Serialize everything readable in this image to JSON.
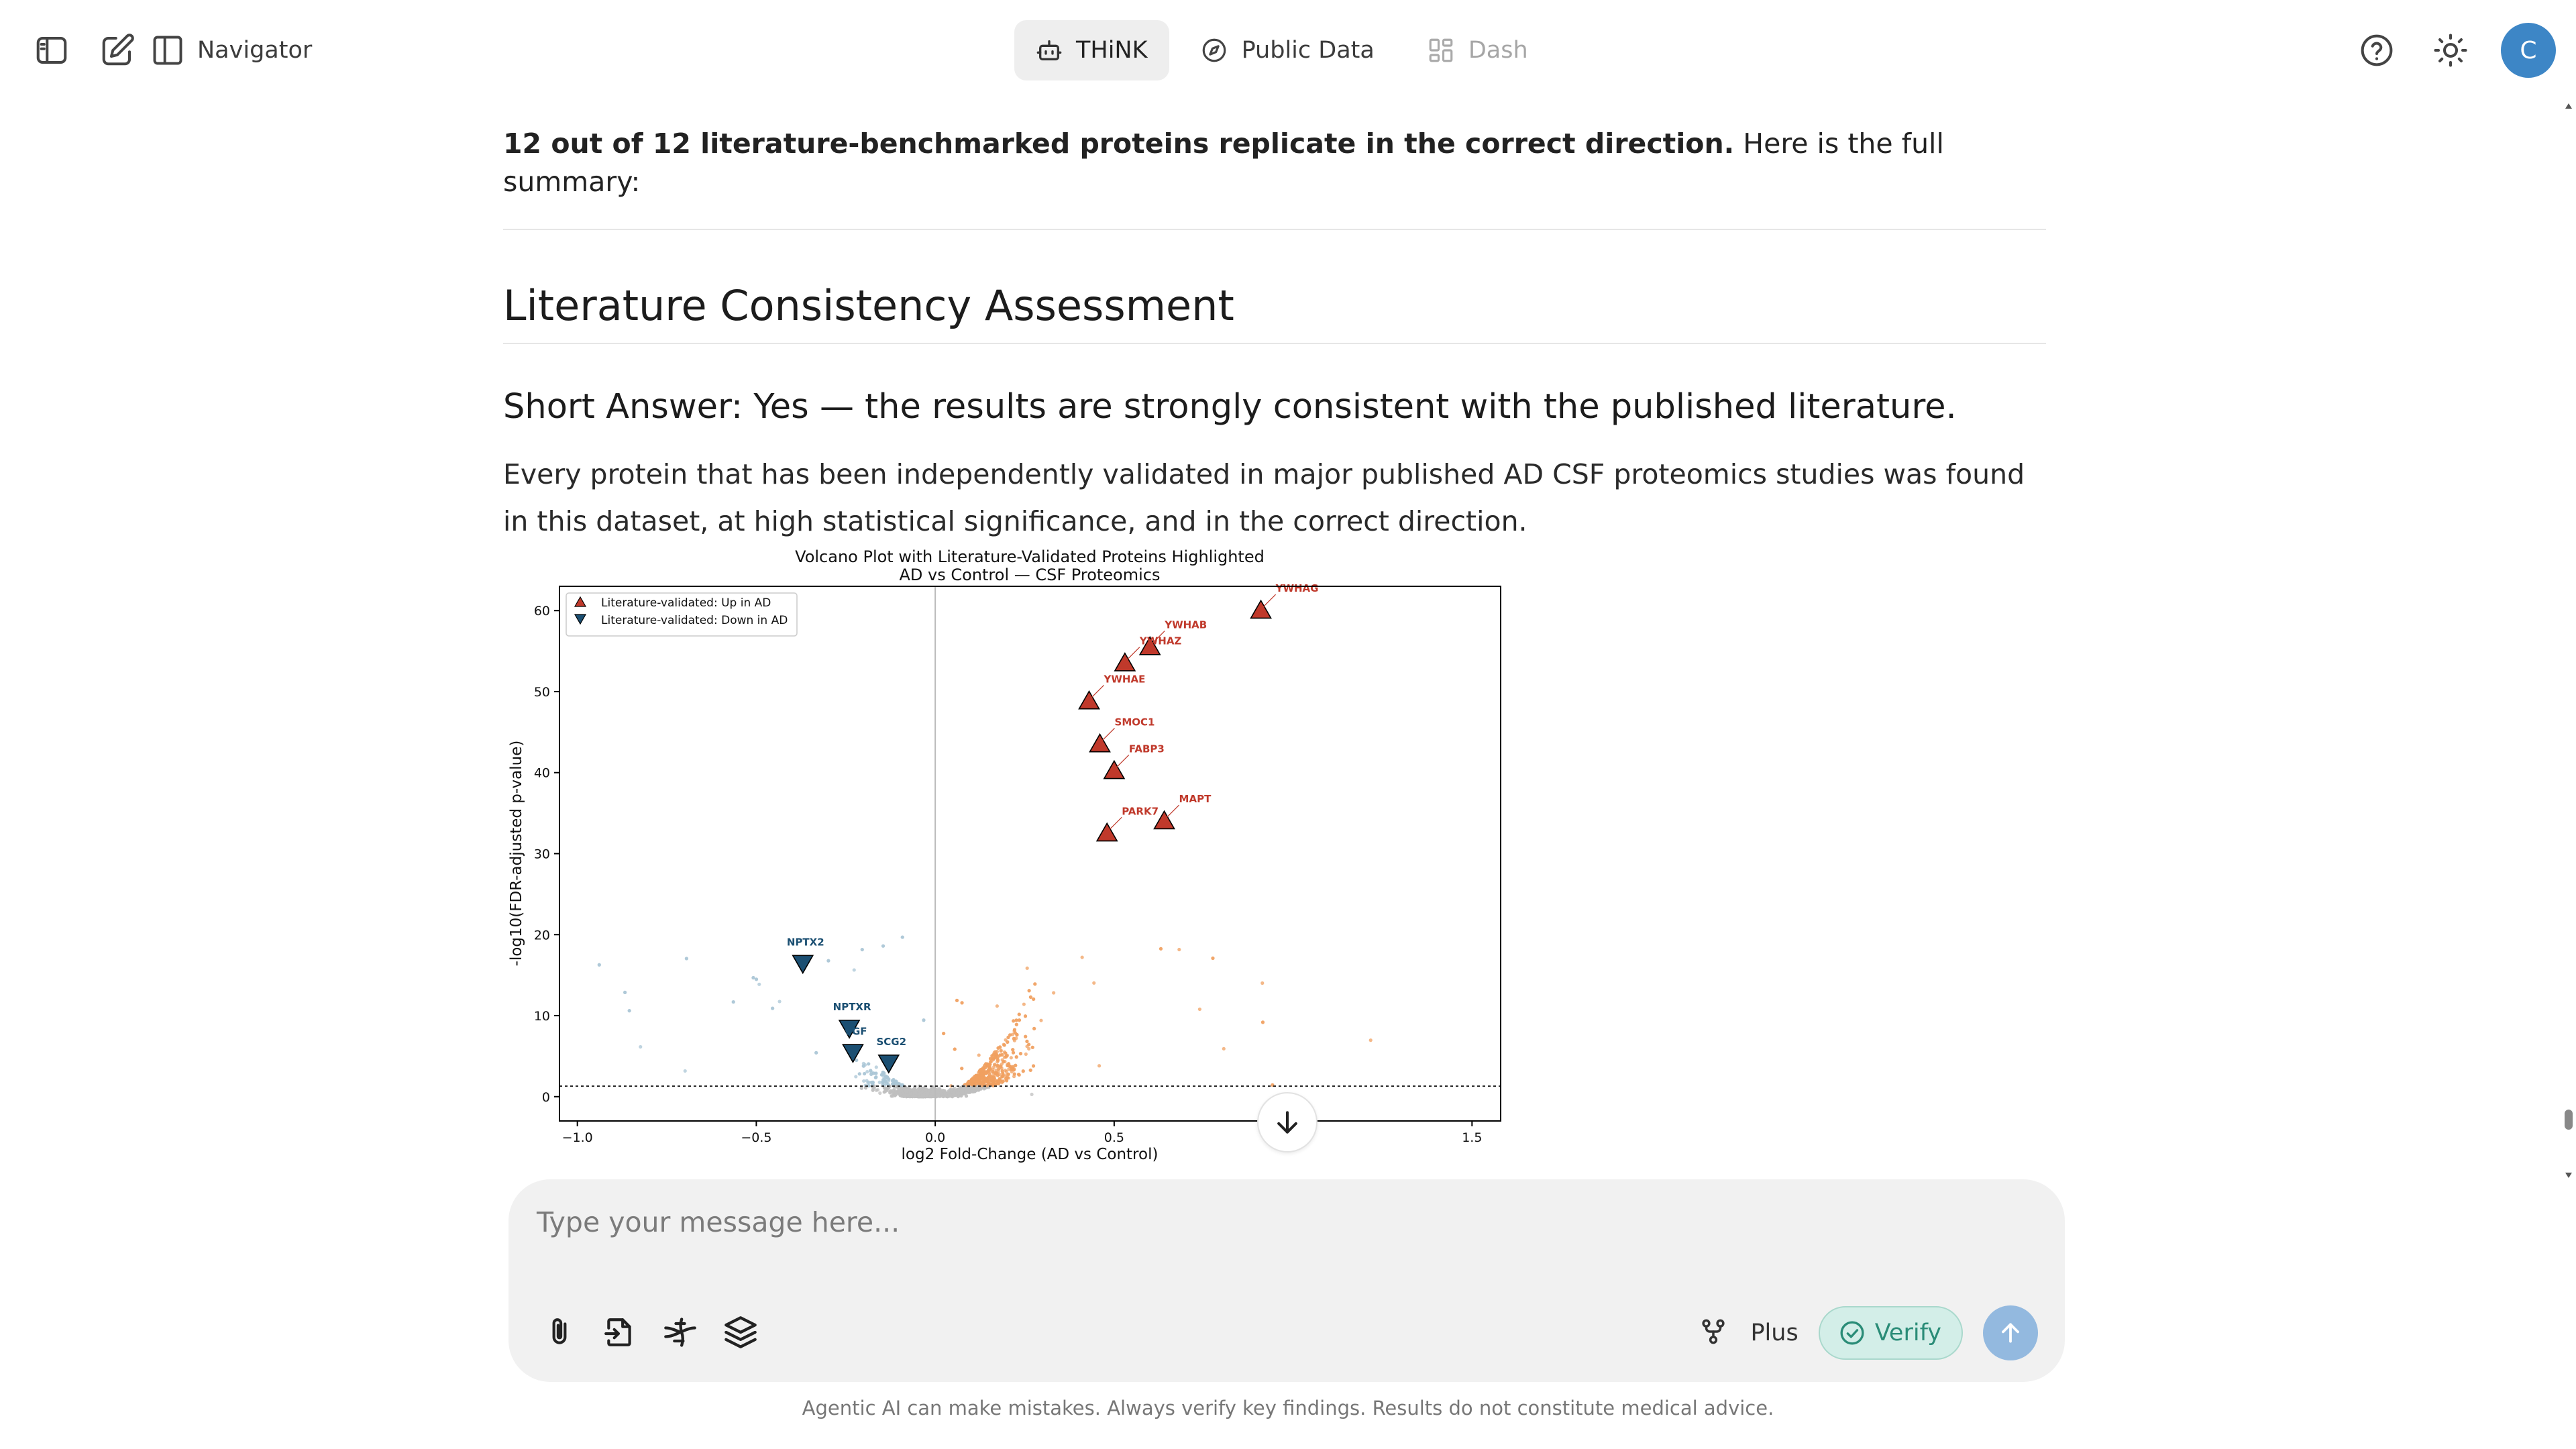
{
  "topbar": {
    "navigator_label": "Navigator",
    "tabs": [
      {
        "label": "THiNK",
        "icon": "robot-icon",
        "active": true
      },
      {
        "label": "Public Data",
        "icon": "compass-icon"
      },
      {
        "label": "Dash",
        "icon": "dashboard-icon",
        "disabled": true
      }
    ],
    "avatar_initial": "C"
  },
  "content": {
    "lead_bold": "12 out of 12 literature-benchmarked proteins replicate in the correct direction.",
    "lead_rest": " Here is the full summary:",
    "section_title": "Literature Consistency Assessment",
    "short_answer": "Short Answer: Yes — the results are strongly consistent with the published literature.",
    "body": "Every protein that has been independently validated in major published AD CSF proteomics studies was found in this dataset, at high statistical significance, and in the correct direction."
  },
  "chart_data": {
    "type": "scatter",
    "title": "Volcano Plot with Literature-Validated Proteins Highlighted",
    "subtitle": "AD vs Control — CSF Proteomics",
    "xlabel": "log2 Fold-Change (AD vs Control)",
    "ylabel": "-log10(FDR-adjusted p-value)",
    "xlim": [
      -1.05,
      1.58
    ],
    "ylim": [
      -3,
      63
    ],
    "xticks": [
      -1.0,
      -0.5,
      0.0,
      0.5,
      1.0,
      1.5
    ],
    "xtick_labels": [
      "−1.0",
      "−0.5",
      "0.0",
      "0.5",
      "1.0",
      "1.5"
    ],
    "yticks": [
      0,
      10,
      20,
      30,
      40,
      50,
      60
    ],
    "significance_threshold_y": 1.3,
    "legend": {
      "placement": "top-left",
      "entries": [
        "Literature-validated: Up in AD",
        "Literature-validated: Down in AD"
      ]
    },
    "colors": {
      "up": "#c0392b",
      "down": "#1b4f72",
      "bg_up": "#f0a060",
      "bg_down": "#a9c6d6",
      "bg_ns": "#bfbfbf",
      "label_up": "#c0392b",
      "label_down": "#1b4f72"
    },
    "highlighted": [
      {
        "name": "YWHAG",
        "x": 0.91,
        "y": 60.0,
        "direction": "up"
      },
      {
        "name": "YWHAB",
        "x": 0.6,
        "y": 55.5,
        "direction": "up"
      },
      {
        "name": "YWHAZ",
        "x": 0.53,
        "y": 53.5,
        "direction": "up"
      },
      {
        "name": "YWHAE",
        "x": 0.43,
        "y": 48.8,
        "direction": "up"
      },
      {
        "name": "SMOC1",
        "x": 0.46,
        "y": 43.5,
        "direction": "up"
      },
      {
        "name": "FABP3",
        "x": 0.5,
        "y": 40.2,
        "direction": "up"
      },
      {
        "name": "MAPT",
        "x": 0.64,
        "y": 34.0,
        "direction": "up"
      },
      {
        "name": "PARK7",
        "x": 0.48,
        "y": 32.5,
        "direction": "up"
      },
      {
        "name": "NPTX2",
        "x": -0.37,
        "y": 16.5,
        "direction": "down"
      },
      {
        "name": "NPTXR",
        "x": -0.24,
        "y": 8.5,
        "direction": "down"
      },
      {
        "name": "VGF",
        "x": -0.23,
        "y": 5.5,
        "direction": "down"
      },
      {
        "name": "SCG2",
        "x": -0.13,
        "y": 4.2,
        "direction": "down"
      }
    ]
  },
  "composer": {
    "placeholder": "Type your message here...",
    "plus_label": "Plus",
    "verify_label": "Verify"
  },
  "disclaimer": "Agentic AI can make mistakes. Always verify key findings. Results do not constitute medical advice."
}
